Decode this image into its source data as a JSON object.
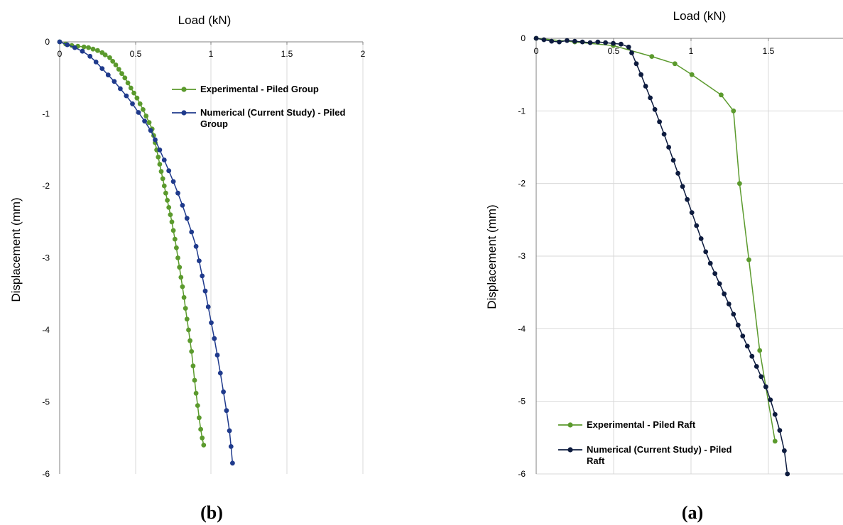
{
  "chart_data": [
    {
      "type": "scatter",
      "panel_label": "(b)",
      "xlabel": "Load (kN)",
      "ylabel": "Displacement (mm)",
      "xlim": [
        0,
        2
      ],
      "ylim": [
        -6,
        0
      ],
      "x_ticks": [
        "0",
        "0.5",
        "1",
        "1.5",
        "2"
      ],
      "y_ticks": [
        "0",
        "-1",
        "-2",
        "-3",
        "-4",
        "-5",
        "-6"
      ],
      "grid": "vertical gridlines",
      "legend_position": "top-right",
      "series": [
        {
          "name": "Experimental - Piled Group",
          "color": "#5b9a2d",
          "x": [
            0,
            0.04,
            0.08,
            0.12,
            0.16,
            0.19,
            0.22,
            0.25,
            0.28,
            0.3,
            0.33,
            0.35,
            0.37,
            0.39,
            0.41,
            0.43,
            0.45,
            0.47,
            0.49,
            0.51,
            0.53,
            0.55,
            0.57,
            0.59,
            0.61,
            0.62,
            0.63,
            0.64,
            0.65,
            0.66,
            0.67,
            0.68,
            0.69,
            0.7,
            0.71,
            0.72,
            0.73,
            0.74,
            0.75,
            0.76,
            0.77,
            0.78,
            0.79,
            0.8,
            0.81,
            0.82,
            0.83,
            0.84,
            0.85,
            0.86,
            0.87,
            0.88,
            0.89,
            0.9,
            0.91,
            0.92,
            0.93,
            0.94,
            0.95
          ],
          "y": [
            0,
            -0.03,
            -0.05,
            -0.06,
            -0.07,
            -0.08,
            -0.1,
            -0.12,
            -0.15,
            -0.18,
            -0.22,
            -0.27,
            -0.32,
            -0.38,
            -0.44,
            -0.5,
            -0.57,
            -0.64,
            -0.71,
            -0.78,
            -0.86,
            -0.94,
            -1.03,
            -1.12,
            -1.21,
            -1.3,
            -1.4,
            -1.5,
            -1.6,
            -1.7,
            -1.8,
            -1.9,
            -2.0,
            -2.1,
            -2.2,
            -2.3,
            -2.4,
            -2.5,
            -2.62,
            -2.74,
            -2.86,
            -3.0,
            -3.13,
            -3.27,
            -3.4,
            -3.55,
            -3.7,
            -3.85,
            -4.0,
            -4.15,
            -4.3,
            -4.5,
            -4.7,
            -4.88,
            -5.05,
            -5.22,
            -5.38,
            -5.5,
            -5.6
          ]
        },
        {
          "name": "Numerical (Current Study) - Piled Group",
          "color": "#1f3a8c",
          "x": [
            0,
            0.05,
            0.1,
            0.15,
            0.2,
            0.24,
            0.28,
            0.32,
            0.36,
            0.4,
            0.44,
            0.48,
            0.52,
            0.56,
            0.6,
            0.63,
            0.66,
            0.69,
            0.72,
            0.75,
            0.78,
            0.81,
            0.84,
            0.87,
            0.9,
            0.92,
            0.94,
            0.96,
            0.98,
            1.0,
            1.02,
            1.04,
            1.06,
            1.08,
            1.1,
            1.12,
            1.13,
            1.14
          ],
          "y": [
            0,
            -0.04,
            -0.08,
            -0.13,
            -0.2,
            -0.28,
            -0.37,
            -0.46,
            -0.55,
            -0.65,
            -0.75,
            -0.86,
            -0.98,
            -1.1,
            -1.23,
            -1.36,
            -1.5,
            -1.64,
            -1.79,
            -1.94,
            -2.1,
            -2.27,
            -2.45,
            -2.64,
            -2.84,
            -3.04,
            -3.25,
            -3.46,
            -3.68,
            -3.9,
            -4.12,
            -4.35,
            -4.6,
            -4.86,
            -5.12,
            -5.4,
            -5.62,
            -5.85
          ]
        }
      ]
    },
    {
      "type": "scatter",
      "panel_label": "(a)",
      "xlabel": "Load (kN)",
      "ylabel": "Displacement (mm)",
      "xlim": [
        0,
        2
      ],
      "ylim": [
        -6,
        0
      ],
      "x_ticks": [
        "0",
        "0.5",
        "1",
        "1.5"
      ],
      "y_ticks": [
        "0",
        "-1",
        "-2",
        "-3",
        "-4",
        "-5",
        "-6"
      ],
      "grid": "vertical and horizontal gridlines",
      "legend_position": "bottom-left",
      "series": [
        {
          "name": "Experimental - Piled Raft",
          "color": "#5b9a2d",
          "x": [
            0,
            0.25,
            0.5,
            0.75,
            0.9,
            1.01,
            1.2,
            1.28,
            1.32,
            1.38,
            1.45,
            1.55
          ],
          "y": [
            0,
            -0.05,
            -0.1,
            -0.25,
            -0.35,
            -0.5,
            -0.78,
            -1.0,
            -2.0,
            -3.05,
            -4.3,
            -5.55
          ]
        },
        {
          "name": "Numerical (Current Study) - Piled Raft",
          "color": "#0d1b3e",
          "x": [
            0,
            0.05,
            0.1,
            0.15,
            0.2,
            0.25,
            0.3,
            0.35,
            0.4,
            0.45,
            0.5,
            0.55,
            0.6,
            0.62,
            0.65,
            0.68,
            0.71,
            0.74,
            0.77,
            0.8,
            0.83,
            0.86,
            0.89,
            0.92,
            0.95,
            0.98,
            1.01,
            1.04,
            1.07,
            1.1,
            1.13,
            1.16,
            1.19,
            1.22,
            1.25,
            1.28,
            1.31,
            1.34,
            1.37,
            1.4,
            1.43,
            1.46,
            1.49,
            1.52,
            1.55,
            1.58,
            1.61,
            1.63
          ],
          "y": [
            0,
            -0.02,
            -0.04,
            -0.05,
            -0.03,
            -0.04,
            -0.05,
            -0.06,
            -0.05,
            -0.06,
            -0.07,
            -0.08,
            -0.12,
            -0.2,
            -0.35,
            -0.5,
            -0.66,
            -0.82,
            -0.98,
            -1.15,
            -1.32,
            -1.5,
            -1.68,
            -1.86,
            -2.04,
            -2.22,
            -2.4,
            -2.58,
            -2.76,
            -2.94,
            -3.1,
            -3.24,
            -3.38,
            -3.52,
            -3.66,
            -3.8,
            -3.95,
            -4.1,
            -4.24,
            -4.38,
            -4.52,
            -4.66,
            -4.8,
            -4.98,
            -5.18,
            -5.4,
            -5.68,
            -6.0
          ]
        }
      ]
    }
  ]
}
